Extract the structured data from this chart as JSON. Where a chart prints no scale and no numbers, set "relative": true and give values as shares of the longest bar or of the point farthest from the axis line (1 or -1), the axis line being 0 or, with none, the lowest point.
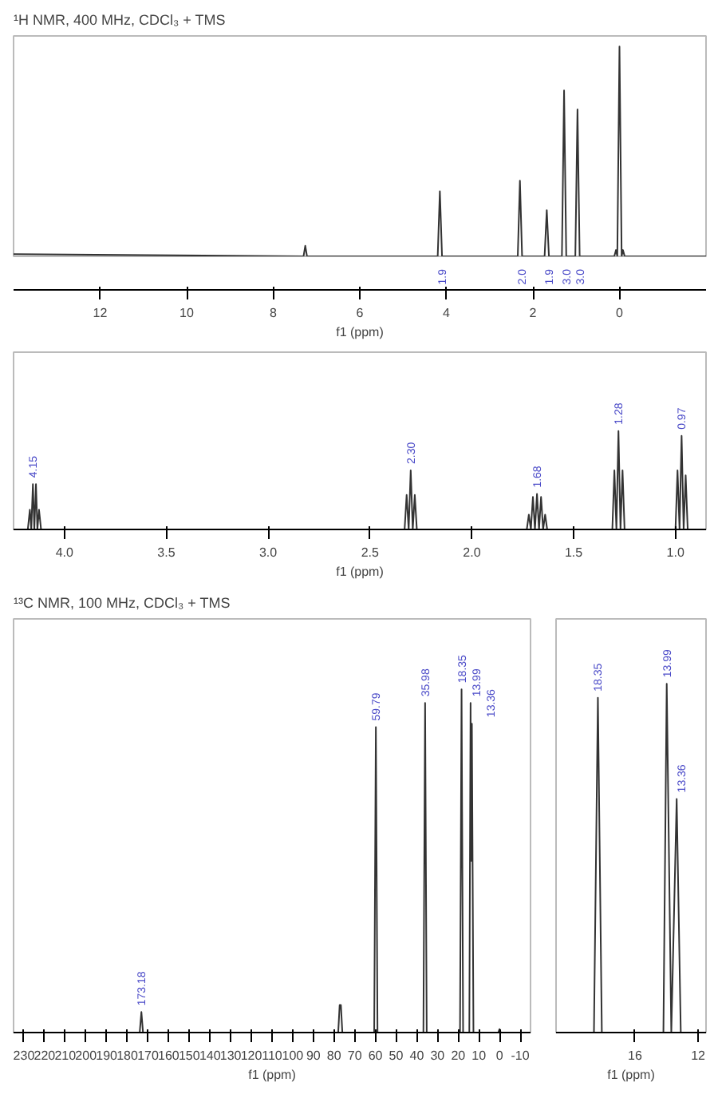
{
  "chart_data": [
    {
      "type": "line",
      "title": "¹H NMR, 400 MHz, CDCl₃ + TMS",
      "xlabel": "f1 (ppm)",
      "relative": true,
      "xlim": [
        14,
        -2
      ],
      "xticks": [
        12,
        10,
        8,
        6,
        4,
        2,
        0
      ],
      "series": [
        {
          "color": "#333333",
          "x": [
            14,
            7.3,
            7.26,
            7.22,
            4.2,
            4.15,
            4.1,
            2.35,
            2.3,
            2.25,
            1.73,
            1.68,
            1.63,
            1.33,
            1.28,
            1.23,
            1.02,
            0.97,
            0.92,
            0.12,
            0.08,
            0.05,
            0,
            -0.05,
            -0.08,
            -0.12,
            -2
          ],
          "values": [
            0.01,
            0,
            0.05,
            0,
            0,
            0.31,
            0,
            0,
            0.36,
            0,
            0,
            0.22,
            0,
            0,
            0.79,
            0,
            0,
            0.7,
            0,
            0,
            0.03,
            0,
            1,
            0,
            0.03,
            0,
            0
          ]
        }
      ],
      "annotations": [
        {
          "text": "1.9",
          "x": 4.1,
          "y": 0
        },
        {
          "text": "2.0",
          "x": 2.25,
          "y": 0
        },
        {
          "text": "1.9",
          "x": 1.63,
          "y": 0
        },
        {
          "text": "3.0",
          "x": 1.23,
          "y": 0
        },
        {
          "text": "3.0",
          "x": 0.92,
          "y": 0
        }
      ]
    },
    {
      "type": "line",
      "xlabel": "f1 (ppm)",
      "relative": true,
      "xlim": [
        4.25,
        0.85
      ],
      "xticks": [
        {
          "value": 4,
          "label": "4.0"
        },
        3.5,
        {
          "value": 3,
          "label": "3.0"
        },
        2.5,
        {
          "value": 2,
          "label": "2.0"
        },
        1.5,
        {
          "value": 1,
          "label": "1.0"
        }
      ],
      "series": [
        {
          "color": "#333333",
          "x": [
            4.25,
            4.18,
            4.17,
            4.163,
            4.155,
            4.148,
            4.14,
            4.133,
            4.125,
            4.115,
            2.33,
            2.32,
            2.31,
            2.3,
            2.29,
            2.28,
            2.27,
            1.73,
            1.72,
            1.71,
            1.7,
            1.69,
            1.68,
            1.67,
            1.66,
            1.65,
            1.64,
            1.63,
            1.31,
            1.3,
            1.29,
            1.28,
            1.27,
            1.26,
            1.25,
            1.0,
            0.99,
            0.98,
            0.97,
            0.96,
            0.95,
            0.94,
            0.85
          ],
          "values": [
            0,
            0,
            0.2,
            0,
            0.46,
            0,
            0.46,
            0,
            0.2,
            0,
            0,
            0.35,
            0,
            0.6,
            0,
            0.35,
            0,
            0,
            0.15,
            0,
            0.33,
            0,
            0.36,
            0,
            0.33,
            0,
            0.15,
            0,
            0,
            0.6,
            0,
            1,
            0,
            0.6,
            0,
            0,
            0.6,
            0,
            0.95,
            0,
            0.55,
            0,
            0
          ]
        }
      ],
      "annotations": [
        {
          "text": "4.15",
          "x": 4.155,
          "y": 0.46
        },
        {
          "text": "2.30",
          "x": 2.3,
          "y": 0.6
        },
        {
          "text": "1.68",
          "x": 1.68,
          "y": 0.36
        },
        {
          "text": "1.28",
          "x": 1.28,
          "y": 1
        },
        {
          "text": "0.97",
          "x": 0.97,
          "y": 0.95
        }
      ]
    },
    {
      "type": "line",
      "title": "¹³C NMR, 100 MHz, CDCl₃ + TMS",
      "xlabel": "f1 (ppm)",
      "relative": true,
      "xlim": [
        235,
        -15
      ],
      "xticks": [
        230,
        220,
        210,
        200,
        190,
        180,
        170,
        160,
        150,
        140,
        130,
        120,
        110,
        100,
        90,
        80,
        70,
        60,
        50,
        40,
        30,
        20,
        10,
        0,
        -10
      ],
      "series": [
        {
          "color": "#333333",
          "x": [
            235,
            174,
            173.18,
            172.4,
            78,
            77.3,
            77,
            76.7,
            76,
            60.6,
            59.79,
            59,
            36.8,
            35.98,
            35.2,
            19.1,
            18.35,
            17.6,
            14.6,
            13.99,
            13.7,
            13.36,
            12.6,
            0.6,
            0,
            -0.6,
            -15
          ],
          "values": [
            0,
            0,
            0.06,
            0,
            0,
            0.08,
            0.08,
            0.08,
            0,
            0,
            0.89,
            0,
            0,
            0.96,
            0,
            0,
            1,
            0,
            0,
            0.96,
            0.5,
            0.9,
            0,
            0,
            0.01,
            0,
            0
          ]
        }
      ],
      "annotations": [
        {
          "text": "173.18",
          "x": 173.18,
          "y": 0.06
        },
        {
          "text": "59.79",
          "x": 59.79,
          "y": 0.89
        },
        {
          "text": "35.98",
          "x": 35.98,
          "y": 0.96
        },
        {
          "text": "18.35",
          "x": 18.35,
          "y": 1
        },
        {
          "text": "13.99",
          "x": 13.99,
          "y": 0.96
        },
        {
          "text": "13.36",
          "x": 13.36,
          "y": 0.9
        }
      ]
    },
    {
      "type": "line",
      "xlabel": "f1 (ppm)",
      "relative": true,
      "xlim": [
        21,
        11.5
      ],
      "xticks": [
        16,
        12
      ],
      "series": [
        {
          "color": "#333333",
          "x": [
            21,
            18.6,
            18.35,
            18.1,
            14.2,
            13.99,
            13.7,
            13.36,
            13.1,
            11.5
          ],
          "values": [
            0,
            0,
            0.96,
            0,
            0,
            1,
            0,
            0.67,
            0,
            0
          ]
        }
      ],
      "annotations": [
        {
          "text": "18.35",
          "x": 18.35,
          "y": 0.96
        },
        {
          "text": "13.99",
          "x": 13.99,
          "y": 1
        },
        {
          "text": "13.36",
          "x": 13.36,
          "y": 0.67
        }
      ]
    }
  ]
}
